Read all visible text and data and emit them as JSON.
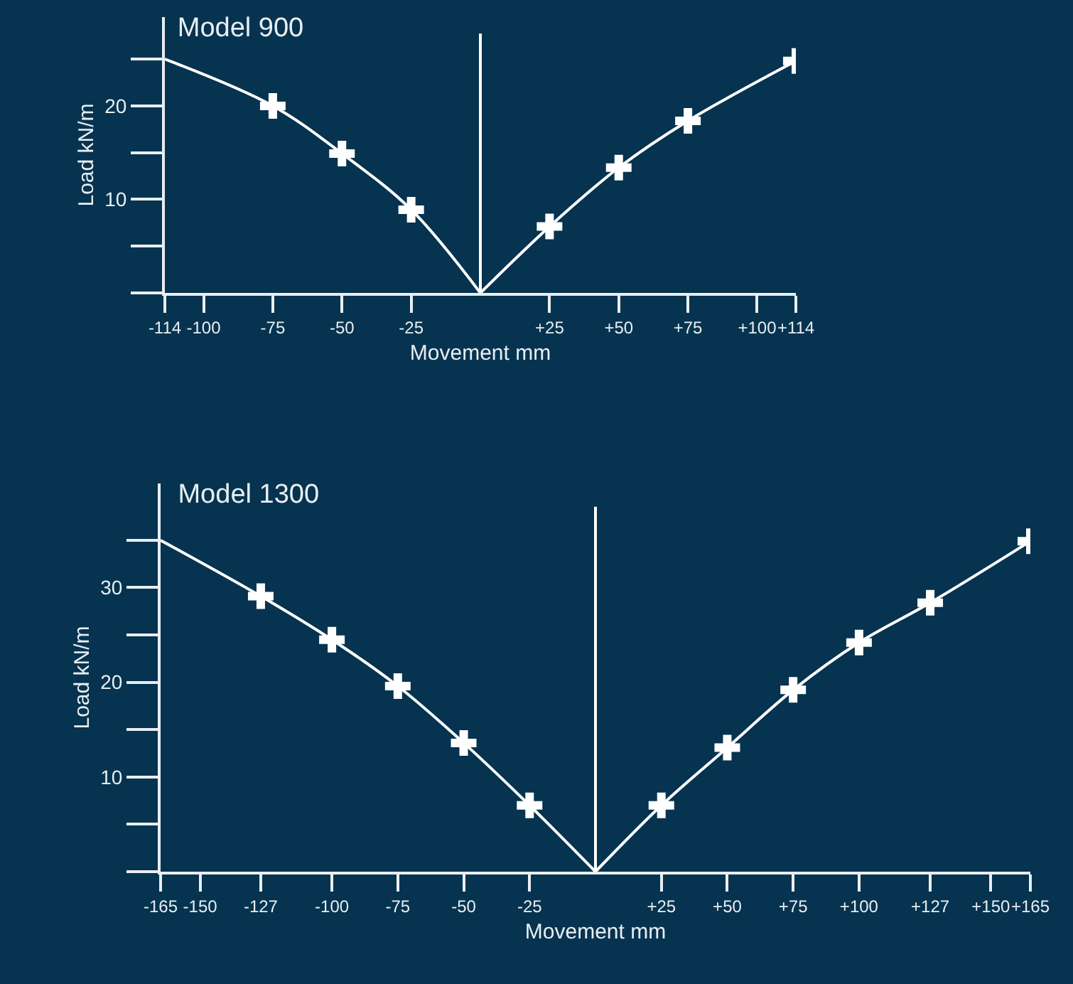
{
  "chart_data": [
    {
      "type": "line",
      "title": "Model 900",
      "xlabel": "Movement mm",
      "ylabel": "Load kN/m",
      "xlim": [
        -114,
        114
      ],
      "ylim": [
        0,
        29.5
      ],
      "xticks": [
        -114,
        -100,
        -75,
        -50,
        -25,
        {
          "value": 25,
          "label": "+25"
        },
        {
          "value": 50,
          "label": "+50"
        },
        {
          "value": 75,
          "label": "+75"
        },
        {
          "value": 100,
          "label": "+100"
        },
        {
          "value": 114,
          "label": "+114"
        }
      ],
      "yticks": [
        10,
        20
      ],
      "grid": false,
      "ref_lines": [
        {
          "axis": "x",
          "value": 0,
          "color": "#ffffff"
        }
      ],
      "series": [
        {
          "type": "line",
          "color": "#ffffff",
          "marker": "none",
          "x": [
            -114,
            -75,
            -50,
            -25,
            0
          ],
          "values": [
            25,
            20,
            14.9,
            8.9,
            0
          ]
        },
        {
          "type": "line",
          "color": "#ffffff",
          "marker": "none",
          "x": [
            0,
            25,
            50,
            75,
            114
          ],
          "values": [
            0,
            7.1,
            13.4,
            18.4,
            24.8
          ]
        },
        {
          "type": "scatter",
          "color": "#ffffff",
          "marker": "cross",
          "x": [
            -75,
            -50,
            -25,
            25,
            50,
            75,
            114
          ],
          "values": [
            20,
            14.9,
            8.9,
            7.1,
            13.4,
            18.4,
            24.8
          ]
        }
      ]
    },
    {
      "type": "line",
      "title": "Model 1300",
      "xlabel": "Movement mm",
      "ylabel": "Load kN/m",
      "xlim": [
        -165,
        165
      ],
      "ylim": [
        0,
        41
      ],
      "xticks": [
        -165,
        -150,
        -127,
        -100,
        -75,
        -50,
        -25,
        {
          "value": 25,
          "label": "+25"
        },
        {
          "value": 50,
          "label": "+50"
        },
        {
          "value": 75,
          "label": "+75"
        },
        {
          "value": 100,
          "label": "+100"
        },
        {
          "value": 127,
          "label": "+127"
        },
        {
          "value": 150,
          "label": "+150"
        },
        {
          "value": 165,
          "label": "+165"
        }
      ],
      "yticks": [
        10,
        20,
        30
      ],
      "grid": false,
      "ref_lines": [
        {
          "axis": "x",
          "value": 0,
          "color": "#ffffff"
        }
      ],
      "series": [
        {
          "type": "line",
          "color": "#ffffff",
          "marker": "none",
          "x": [
            -165,
            -127,
            -100,
            -75,
            -50,
            -25,
            0
          ],
          "values": [
            35,
            29.1,
            24.5,
            19.6,
            13.6,
            7,
            0
          ]
        },
        {
          "type": "line",
          "color": "#ffffff",
          "marker": "none",
          "x": [
            0,
            25,
            50,
            75,
            100,
            127,
            165
          ],
          "values": [
            0,
            7,
            13.1,
            19.2,
            24.2,
            28.4,
            34.9
          ]
        },
        {
          "type": "scatter",
          "color": "#ffffff",
          "marker": "cross",
          "x": [
            -127,
            -100,
            -75,
            -50,
            -25,
            25,
            50,
            75,
            100,
            127,
            165
          ],
          "values": [
            29.1,
            24.5,
            19.6,
            13.6,
            7,
            7,
            13.1,
            19.2,
            24.2,
            28.4,
            34.9
          ]
        }
      ]
    }
  ]
}
